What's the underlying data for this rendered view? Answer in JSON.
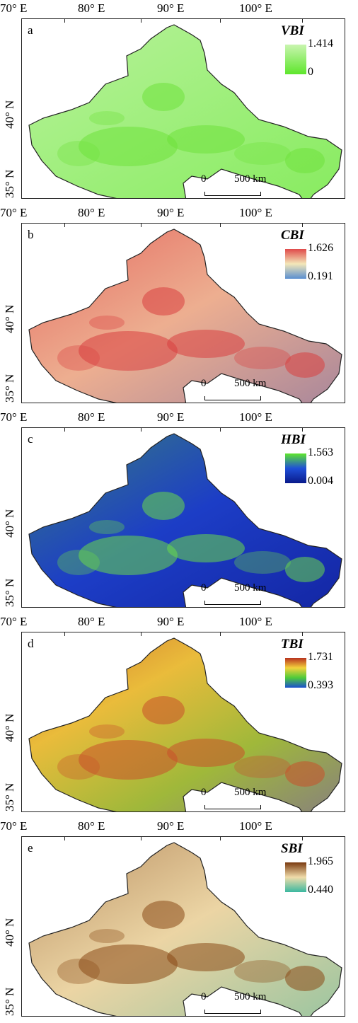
{
  "axes": {
    "lon_labels": [
      "70° E",
      "80° E",
      "90° E",
      "100° E"
    ],
    "lat_labels": [
      "40° N",
      "35° N"
    ]
  },
  "scale_bar": {
    "start": "0",
    "end": "500 km"
  },
  "panels": [
    {
      "letter": "a",
      "index": "VBI",
      "max": "1.414",
      "min": "0",
      "colors": [
        "#c9f5b0",
        "#5ee62c"
      ],
      "fill": "#aaf08a",
      "detail": "#6fe23c"
    },
    {
      "letter": "b",
      "index": "CBI",
      "max": "1.626",
      "min": "0.191",
      "colors": [
        "#e04a4a",
        "#f3e7b8",
        "#5a8fd0"
      ],
      "fill": "#e88070",
      "detail": "#d94040"
    },
    {
      "letter": "c",
      "index": "HBI",
      "max": "1.563",
      "min": "0.004",
      "colors": [
        "#5ee62c",
        "#1e4fd8",
        "#0a1a8a"
      ],
      "fill": "#1b2fb8",
      "detail": "#6ad84a"
    },
    {
      "letter": "d",
      "index": "TBI",
      "max": "1.731",
      "min": "0.393",
      "colors": [
        "#b8321e",
        "#f3d23c",
        "#4ecb3a",
        "#1a4fd0"
      ],
      "fill": "#e2a93a",
      "detail": "#c8502a"
    },
    {
      "letter": "e",
      "index": "SBI",
      "max": "1.965",
      "min": "0.440",
      "colors": [
        "#7a3a10",
        "#f0dcaa",
        "#3ab8a0"
      ],
      "fill": "#e8cfa0",
      "detail": "#8a4a18"
    }
  ]
}
